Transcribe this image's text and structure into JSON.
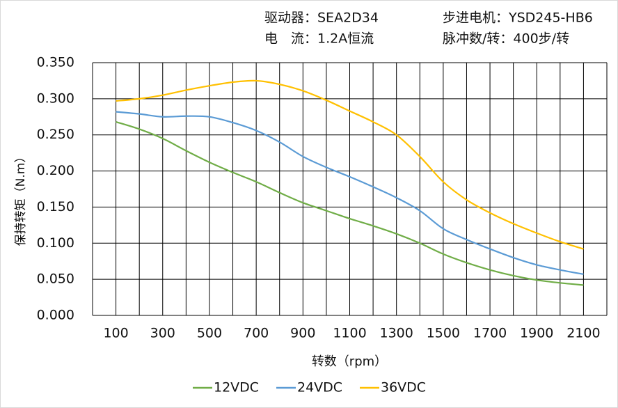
{
  "chart_data": {
    "type": "line",
    "info": [
      "驱动器：SEA2D34",
      "电　流：1.2A恒流",
      "步进电机：YSD245-HB6",
      "脉冲数/转：400步/转"
    ],
    "x_label": "转数（rpm）",
    "y_label": "保持转矩（N.m）",
    "x": [
      100,
      200,
      300,
      400,
      500,
      600,
      700,
      800,
      900,
      1000,
      1100,
      1200,
      1300,
      1400,
      1500,
      1600,
      1700,
      1800,
      1900,
      2000,
      2100
    ],
    "series": [
      {
        "name": "12VDC",
        "color": "#70ad47",
        "values": [
          0.268,
          0.258,
          0.245,
          0.228,
          0.212,
          0.198,
          0.185,
          0.17,
          0.156,
          0.145,
          0.134,
          0.124,
          0.113,
          0.1,
          0.085,
          0.073,
          0.063,
          0.055,
          0.049,
          0.045,
          0.042
        ]
      },
      {
        "name": "24VDC",
        "color": "#5b9bd5",
        "values": [
          0.282,
          0.279,
          0.275,
          0.276,
          0.275,
          0.267,
          0.256,
          0.24,
          0.22,
          0.205,
          0.192,
          0.178,
          0.163,
          0.145,
          0.12,
          0.105,
          0.092,
          0.08,
          0.07,
          0.063,
          0.057
        ]
      },
      {
        "name": "36VDC",
        "color": "#ffc000",
        "values": [
          0.297,
          0.3,
          0.305,
          0.312,
          0.318,
          0.323,
          0.325,
          0.32,
          0.311,
          0.298,
          0.283,
          0.268,
          0.25,
          0.22,
          0.185,
          0.16,
          0.142,
          0.127,
          0.114,
          0.102,
          0.092
        ]
      }
    ],
    "xlim": [
      0,
      2200
    ],
    "xticks": [
      100,
      300,
      500,
      700,
      900,
      1100,
      1300,
      1500,
      1700,
      1900,
      2100
    ],
    "x_minor_grid": [
      0,
      200,
      400,
      600,
      800,
      1000,
      1200,
      1400,
      1600,
      1800,
      2000,
      2200
    ],
    "ylim": [
      0,
      0.35
    ],
    "yticks": [
      {
        "value": 0,
        "label": "0.000"
      },
      {
        "value": 0.05,
        "label": "0.050"
      },
      {
        "value": 0.1,
        "label": "0.100"
      },
      {
        "value": 0.15,
        "label": "0.150"
      },
      {
        "value": 0.2,
        "label": "0.200"
      },
      {
        "value": 0.25,
        "label": "0.250"
      },
      {
        "value": 0.3,
        "label": "0.300"
      },
      {
        "value": 0.35,
        "label": "0.350"
      }
    ],
    "grid": true,
    "legend": "bottom"
  }
}
